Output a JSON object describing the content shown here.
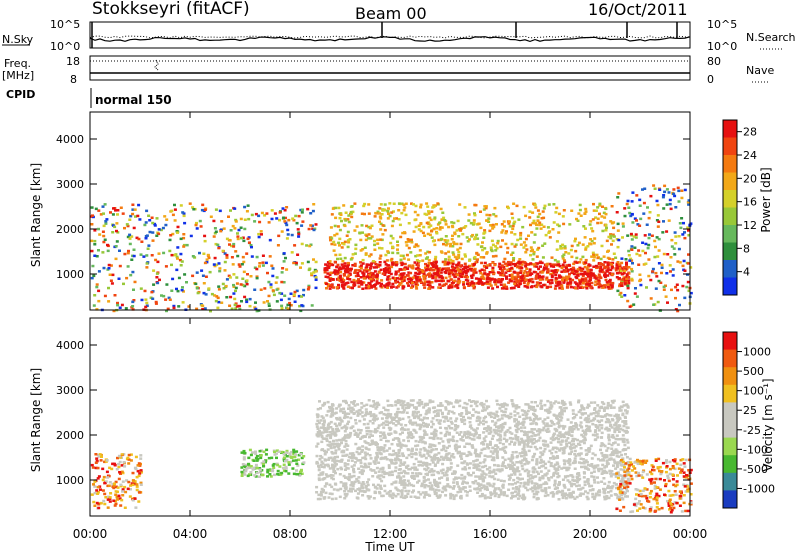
{
  "header": {
    "station": "Stokkseyri (fitACF)",
    "beam": "Beam 00",
    "date": "16/Oct/2011"
  },
  "noise_panel": {
    "left_label": "N.Sky",
    "right_label": "N.Search",
    "left_ticks": [
      "10^5",
      "10^0"
    ],
    "right_ticks": [
      "10^5",
      "10^0"
    ]
  },
  "freq_panel": {
    "left_label_1": "Freq.",
    "left_label_2": "[MHz]",
    "right_label": "Nave",
    "left_ticks": [
      "18",
      "8"
    ],
    "right_ticks": [
      "80",
      "0"
    ]
  },
  "cpid_panel": {
    "label": "CPID",
    "mode": "normal 150"
  },
  "chart_data": [
    {
      "type": "heatmap",
      "name": "power",
      "ylabel": "Slant Range [km]",
      "xlabel": "",
      "ylim": [
        200,
        4600
      ],
      "y_ticks": [
        "1000",
        "2000",
        "3000",
        "4000"
      ],
      "colorbar": {
        "label": "Power [dB]",
        "range": [
          0,
          30
        ],
        "ticks": [
          "4",
          "8",
          "12",
          "16",
          "20",
          "24",
          "28"
        ],
        "colors": [
          "#1030e8",
          "#2060c8",
          "#2e8f3c",
          "#66b85c",
          "#98c838",
          "#d4d02a",
          "#f2a818",
          "#f47a10",
          "#f04410",
          "#e61010"
        ]
      },
      "regions": [
        {
          "from": "09:20",
          "to": "21:30",
          "range_km": [
            700,
            1300
          ],
          "level": "red"
        },
        {
          "from": "09:30",
          "to": "21:00",
          "range_km": [
            1300,
            2600
          ],
          "level": "orange"
        },
        {
          "from": "00:00",
          "to": "09:00",
          "range_km": [
            200,
            2600
          ],
          "level": "mixed"
        },
        {
          "from": "21:00",
          "to": "24:00",
          "range_km": [
            200,
            3000
          ],
          "level": "mixed"
        }
      ]
    },
    {
      "type": "heatmap",
      "name": "velocity",
      "ylabel": "Slant Range [km]",
      "xlabel": "Time UT",
      "ylim": [
        200,
        4600
      ],
      "y_ticks": [
        "1000",
        "2000",
        "3000",
        "4000"
      ],
      "x_ticks": [
        "00:00",
        "04:00",
        "08:00",
        "12:00",
        "16:00",
        "20:00",
        "00:00"
      ],
      "colorbar": {
        "label": "Velocity [m s⁻¹]",
        "ticks": [
          "1000",
          "500",
          "100",
          "25",
          "-25",
          "-100",
          "-500",
          "-1000"
        ],
        "colors": [
          "#1a3cc0",
          "#3a8a98",
          "#48b830",
          "#9ad850",
          "#c8c8c0",
          "#c8c8c0",
          "#f0c020",
          "#f09010",
          "#f05a10",
          "#e81010"
        ]
      },
      "regions": [
        {
          "from": "09:00",
          "to": "21:30",
          "range_km": [
            600,
            2800
          ],
          "level": "grey"
        },
        {
          "from": "06:00",
          "to": "08:30",
          "range_km": [
            1100,
            1700
          ],
          "level": "green"
        },
        {
          "from": "00:00",
          "to": "02:00",
          "range_km": [
            400,
            1600
          ],
          "level": "orange"
        },
        {
          "from": "21:00",
          "to": "24:00",
          "range_km": [
            300,
            1500
          ],
          "level": "orange"
        }
      ]
    }
  ]
}
